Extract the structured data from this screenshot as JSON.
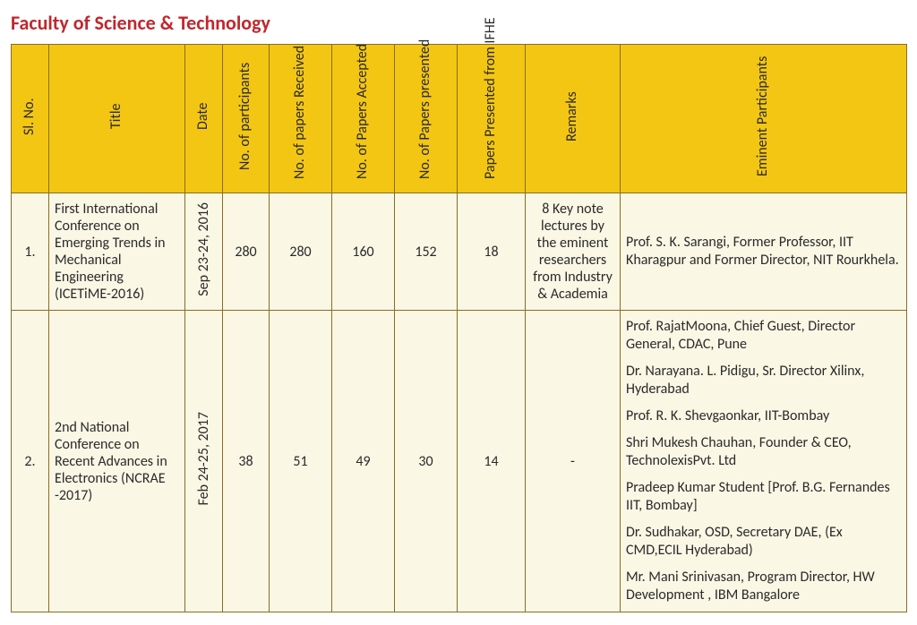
{
  "heading": "Faculty of Science & Technology",
  "columns": {
    "sl": "Sl. No.",
    "title": "Title",
    "date": "Date",
    "participants": "No. of participants",
    "received": "No. of papers\nReceived",
    "accepted": "No. of Papers\nAccepted",
    "presented": "No. of Papers\npresented",
    "ifhe": "Papers Presented\nfrom IFHE",
    "remarks": "Remarks",
    "eminent": "Eminent\nParticipants"
  },
  "rows": [
    {
      "sl": "1.",
      "title": "First International Conference on Emerging Trends in Mechanical Engineering (ICETiME-2016)",
      "date": "Sep 23-24, 2016",
      "participants": "280",
      "received": "280",
      "accepted": "160",
      "presented": "152",
      "ifhe": "18",
      "remarks": "8 Key note lectures by the eminent researchers from Industry & Academia",
      "eminent": [
        "Prof. S. K. Sarangi, Former Professor, IIT Kharagpur and Former Director, NIT Rourkhela."
      ]
    },
    {
      "sl": "2.",
      "title": "2nd National Conference on Recent Advances in Electronics (NCRAE -2017)",
      "date": "Feb 24-25, 2017",
      "participants": "38",
      "received": "51",
      "accepted": "49",
      "presented": "30",
      "ifhe": "14",
      "remarks": "-",
      "eminent": [
        "Prof. RajatMoona, Chief Guest, Director General, CDAC, Pune",
        "Dr. Narayana. L. Pidigu, Sr. Director Xilinx, Hyderabad",
        "Prof. R. K. Shevgaonkar, IIT-Bombay",
        "Shri Mukesh Chauhan, Founder & CEO, TechnolexisPvt. Ltd",
        "Pradeep Kumar Student [Prof. B.G. Fernandes IIT, Bombay]",
        "Dr. Sudhakar, OSD, Secretary DAE, (Ex CMD,ECIL Hyderabad)",
        "Mr. Mani Srinivasan, Program Director, HW Development , IBM Bangalore"
      ]
    }
  ],
  "style": {
    "heading_color": "#c1272d",
    "header_bg": "#f3c613",
    "cell_bg": "#fbf7e5",
    "border_color": "#8a6d1f",
    "font_family": "Gill Sans",
    "heading_fontsize": 22,
    "cell_fontsize": 16
  }
}
